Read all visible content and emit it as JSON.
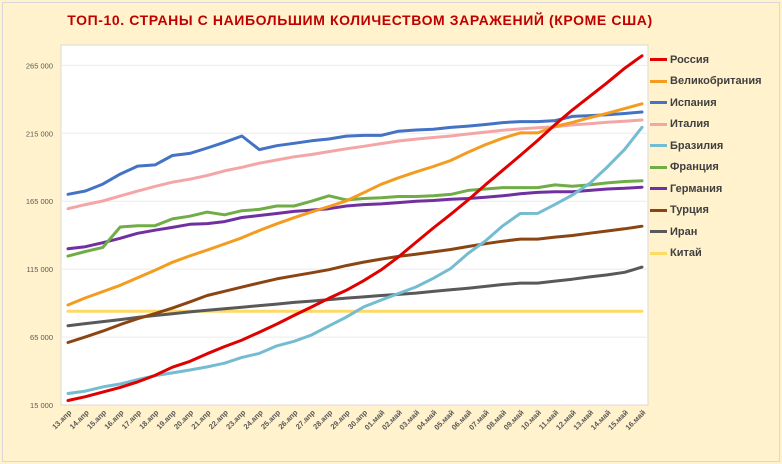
{
  "chart_data": {
    "type": "line",
    "title": "ТОП-10. СТРАНЫ С НАИБОЛЬШИМ КОЛИЧЕСТВОМ ЗАРАЖЕНИЙ (КРОМЕ США)",
    "xlabel": "",
    "ylabel": "",
    "ylim": [
      15000,
      280000
    ],
    "yticks": [
      15000,
      65000,
      115000,
      165000,
      215000,
      265000
    ],
    "ytick_labels": [
      "15 000",
      "65 000",
      "115 000",
      "165 000",
      "215 000",
      "265 000"
    ],
    "grid": true,
    "legend_position": "right",
    "categories": [
      "13.апр",
      "14.апр",
      "15.апр",
      "16.апр",
      "17.апр",
      "18.апр",
      "19.апр",
      "20.апр",
      "21.апр",
      "22.апр",
      "23.апр",
      "24.апр",
      "25.апр",
      "26.апр",
      "27.апр",
      "28.апр",
      "29.апр",
      "30.апр",
      "01.май",
      "02.май",
      "03.май",
      "04.май",
      "05.май",
      "06.май",
      "07.май",
      "08.май",
      "09.май",
      "10.май",
      "11.май",
      "12.май",
      "13.май",
      "14.май",
      "15.май",
      "16.май"
    ],
    "series": [
      {
        "name": "Россия",
        "color": "#e00000",
        "values": [
          18328,
          21102,
          24490,
          27938,
          32008,
          36793,
          42853,
          47121,
          52763,
          57999,
          62773,
          68622,
          74588,
          80949,
          87147,
          93558,
          99399,
          106498,
          114431,
          124054,
          134687,
          145268,
          155370,
          165929,
          177160,
          187859,
          198676,
          209688,
          221344,
          232243,
          242271,
          252245,
          262843,
          272043
        ]
      },
      {
        "name": "Великобритания",
        "color": "#f39c1f",
        "values": [
          88621,
          93873,
          98476,
          103093,
          108692,
          114217,
          120067,
          124743,
          129044,
          133495,
          138078,
          143464,
          148377,
          152840,
          157149,
          161145,
          165221,
          171253,
          177454,
          182260,
          186599,
          190584,
          194990,
          201101,
          206715,
          211364,
          215260,
          215260,
          220000,
          223060,
          226463,
          229705,
          233151,
          236711
        ]
      },
      {
        "name": "Испания",
        "color": "#4472c4",
        "values": [
          170099,
          172541,
          177633,
          184948,
          190839,
          191726,
          198674,
          200210,
          204178,
          208389,
          213024,
          202990,
          205905,
          207634,
          209465,
          210773,
          212917,
          213435,
          213435,
          216582,
          217466,
          218011,
          219329,
          220325,
          221447,
          222857,
          223578,
          223578,
          224350,
          227436,
          228030,
          228691,
          229540,
          230698
        ]
      },
      {
        "name": "Италия",
        "color": "#f4a6a6",
        "values": [
          159516,
          162488,
          165155,
          168941,
          172434,
          175925,
          178972,
          181228,
          183957,
          187327,
          189973,
          192994,
          195351,
          197675,
          199414,
          201505,
          203591,
          205463,
          207428,
          209328,
          210717,
          211938,
          213013,
          214457,
          215858,
          217185,
          218268,
          219070,
          219814,
          221216,
          222104,
          223096,
          223885,
          224760
        ]
      },
      {
        "name": "Бразилия",
        "color": "#74bcd2",
        "values": [
          23430,
          25262,
          28320,
          30425,
          33682,
          36599,
          38654,
          40743,
          43079,
          45757,
          50036,
          52995,
          58509,
          61888,
          66501,
          73235,
          79685,
          87187,
          92202,
          97100,
          101826,
          108266,
          115455,
          126611,
          135773,
          146894,
          155939,
          156061,
          162699,
          169594,
          178214,
          190137,
          203165,
          219400
        ]
      },
      {
        "name": "Франция",
        "color": "#70ad47",
        "values": [
          124600,
          128000,
          131000,
          146000,
          147000,
          147000,
          152000,
          154000,
          157000,
          155000,
          158000,
          159000,
          161500,
          161500,
          165000,
          169000,
          166000,
          167000,
          167500,
          168500,
          168500,
          169000,
          170000,
          173000,
          174000,
          175000,
          175000,
          175000,
          177000,
          176000,
          177000,
          178500,
          179500,
          180000
        ]
      },
      {
        "name": "Германия",
        "color": "#7030a0",
        "values": [
          130000,
          131500,
          134500,
          137700,
          141400,
          143700,
          145700,
          148000,
          148500,
          150000,
          153000,
          154500,
          156000,
          157500,
          158500,
          159500,
          161500,
          162500,
          163000,
          164000,
          165000,
          165500,
          166500,
          167000,
          168000,
          169000,
          170500,
          171500,
          172000,
          172000,
          173000,
          174000,
          174500,
          175300
        ]
      },
      {
        "name": "Турция",
        "color": "#8b4513",
        "values": [
          61000,
          65100,
          69400,
          74200,
          78500,
          82300,
          86300,
          90900,
          95600,
          98700,
          101800,
          104900,
          107800,
          110100,
          112300,
          114600,
          117600,
          120200,
          122400,
          124400,
          126000,
          127700,
          129500,
          131700,
          133700,
          135600,
          137100,
          137100,
          138600,
          139800,
          141500,
          143100,
          144700,
          146600
        ]
      },
      {
        "name": "Иран",
        "color": "#595959",
        "values": [
          73300,
          74900,
          76400,
          77900,
          79500,
          80900,
          82200,
          83500,
          84800,
          85900,
          87000,
          88200,
          89300,
          90500,
          91500,
          92600,
          93700,
          94600,
          95600,
          96400,
          97400,
          98600,
          99900,
          101000,
          102300,
          103700,
          104700,
          104700,
          106200,
          107600,
          109300,
          110800,
          112700,
          116500
        ]
      },
      {
        "name": "Китай",
        "color": "#ffd966",
        "values": [
          84000,
          84000,
          84000,
          84000,
          84000,
          84000,
          84000,
          84000,
          84000,
          84000,
          84000,
          84000,
          84000,
          84000,
          84000,
          84000,
          84000,
          84000,
          84000,
          84000,
          84000,
          84000,
          84000,
          84000,
          84000,
          84000,
          84000,
          84000,
          84000,
          84000,
          84000,
          84000,
          84000,
          84000
        ]
      }
    ]
  }
}
